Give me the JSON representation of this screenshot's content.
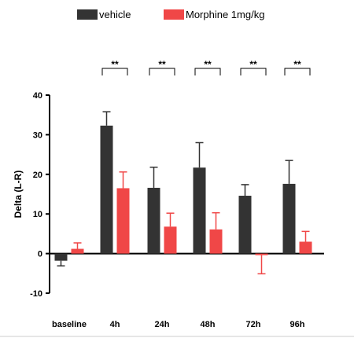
{
  "chart_data": {
    "type": "bar",
    "title": "",
    "xlabel": "",
    "ylabel": "Delta (L-R)",
    "ylim": [
      -10,
      40
    ],
    "yticks": [
      -10,
      0,
      10,
      20,
      30,
      40
    ],
    "grid": false,
    "legend_position": "top",
    "categories": [
      "baseline",
      "4h",
      "24h",
      "48h",
      "72h",
      "96h"
    ],
    "series": [
      {
        "name": "vehicle",
        "color": "#333333",
        "values": [
          -1.8,
          32.3,
          16.6,
          21.7,
          14.6,
          17.6
        ],
        "errors": [
          1.3,
          3.5,
          5.2,
          6.3,
          2.8,
          5.9
        ]
      },
      {
        "name": "Morphine 1mg/kg",
        "color": "#f04747",
        "values": [
          1.2,
          16.5,
          6.8,
          6.1,
          -0.4,
          3.0
        ],
        "errors": [
          1.5,
          4.1,
          3.4,
          4.2,
          4.7,
          2.6
        ]
      }
    ],
    "significance": [
      {
        "category": "4h",
        "label": "**"
      },
      {
        "category": "24h",
        "label": "**"
      },
      {
        "category": "48h",
        "label": "**"
      },
      {
        "category": "72h",
        "label": "**"
      },
      {
        "category": "96h",
        "label": "**"
      }
    ]
  }
}
